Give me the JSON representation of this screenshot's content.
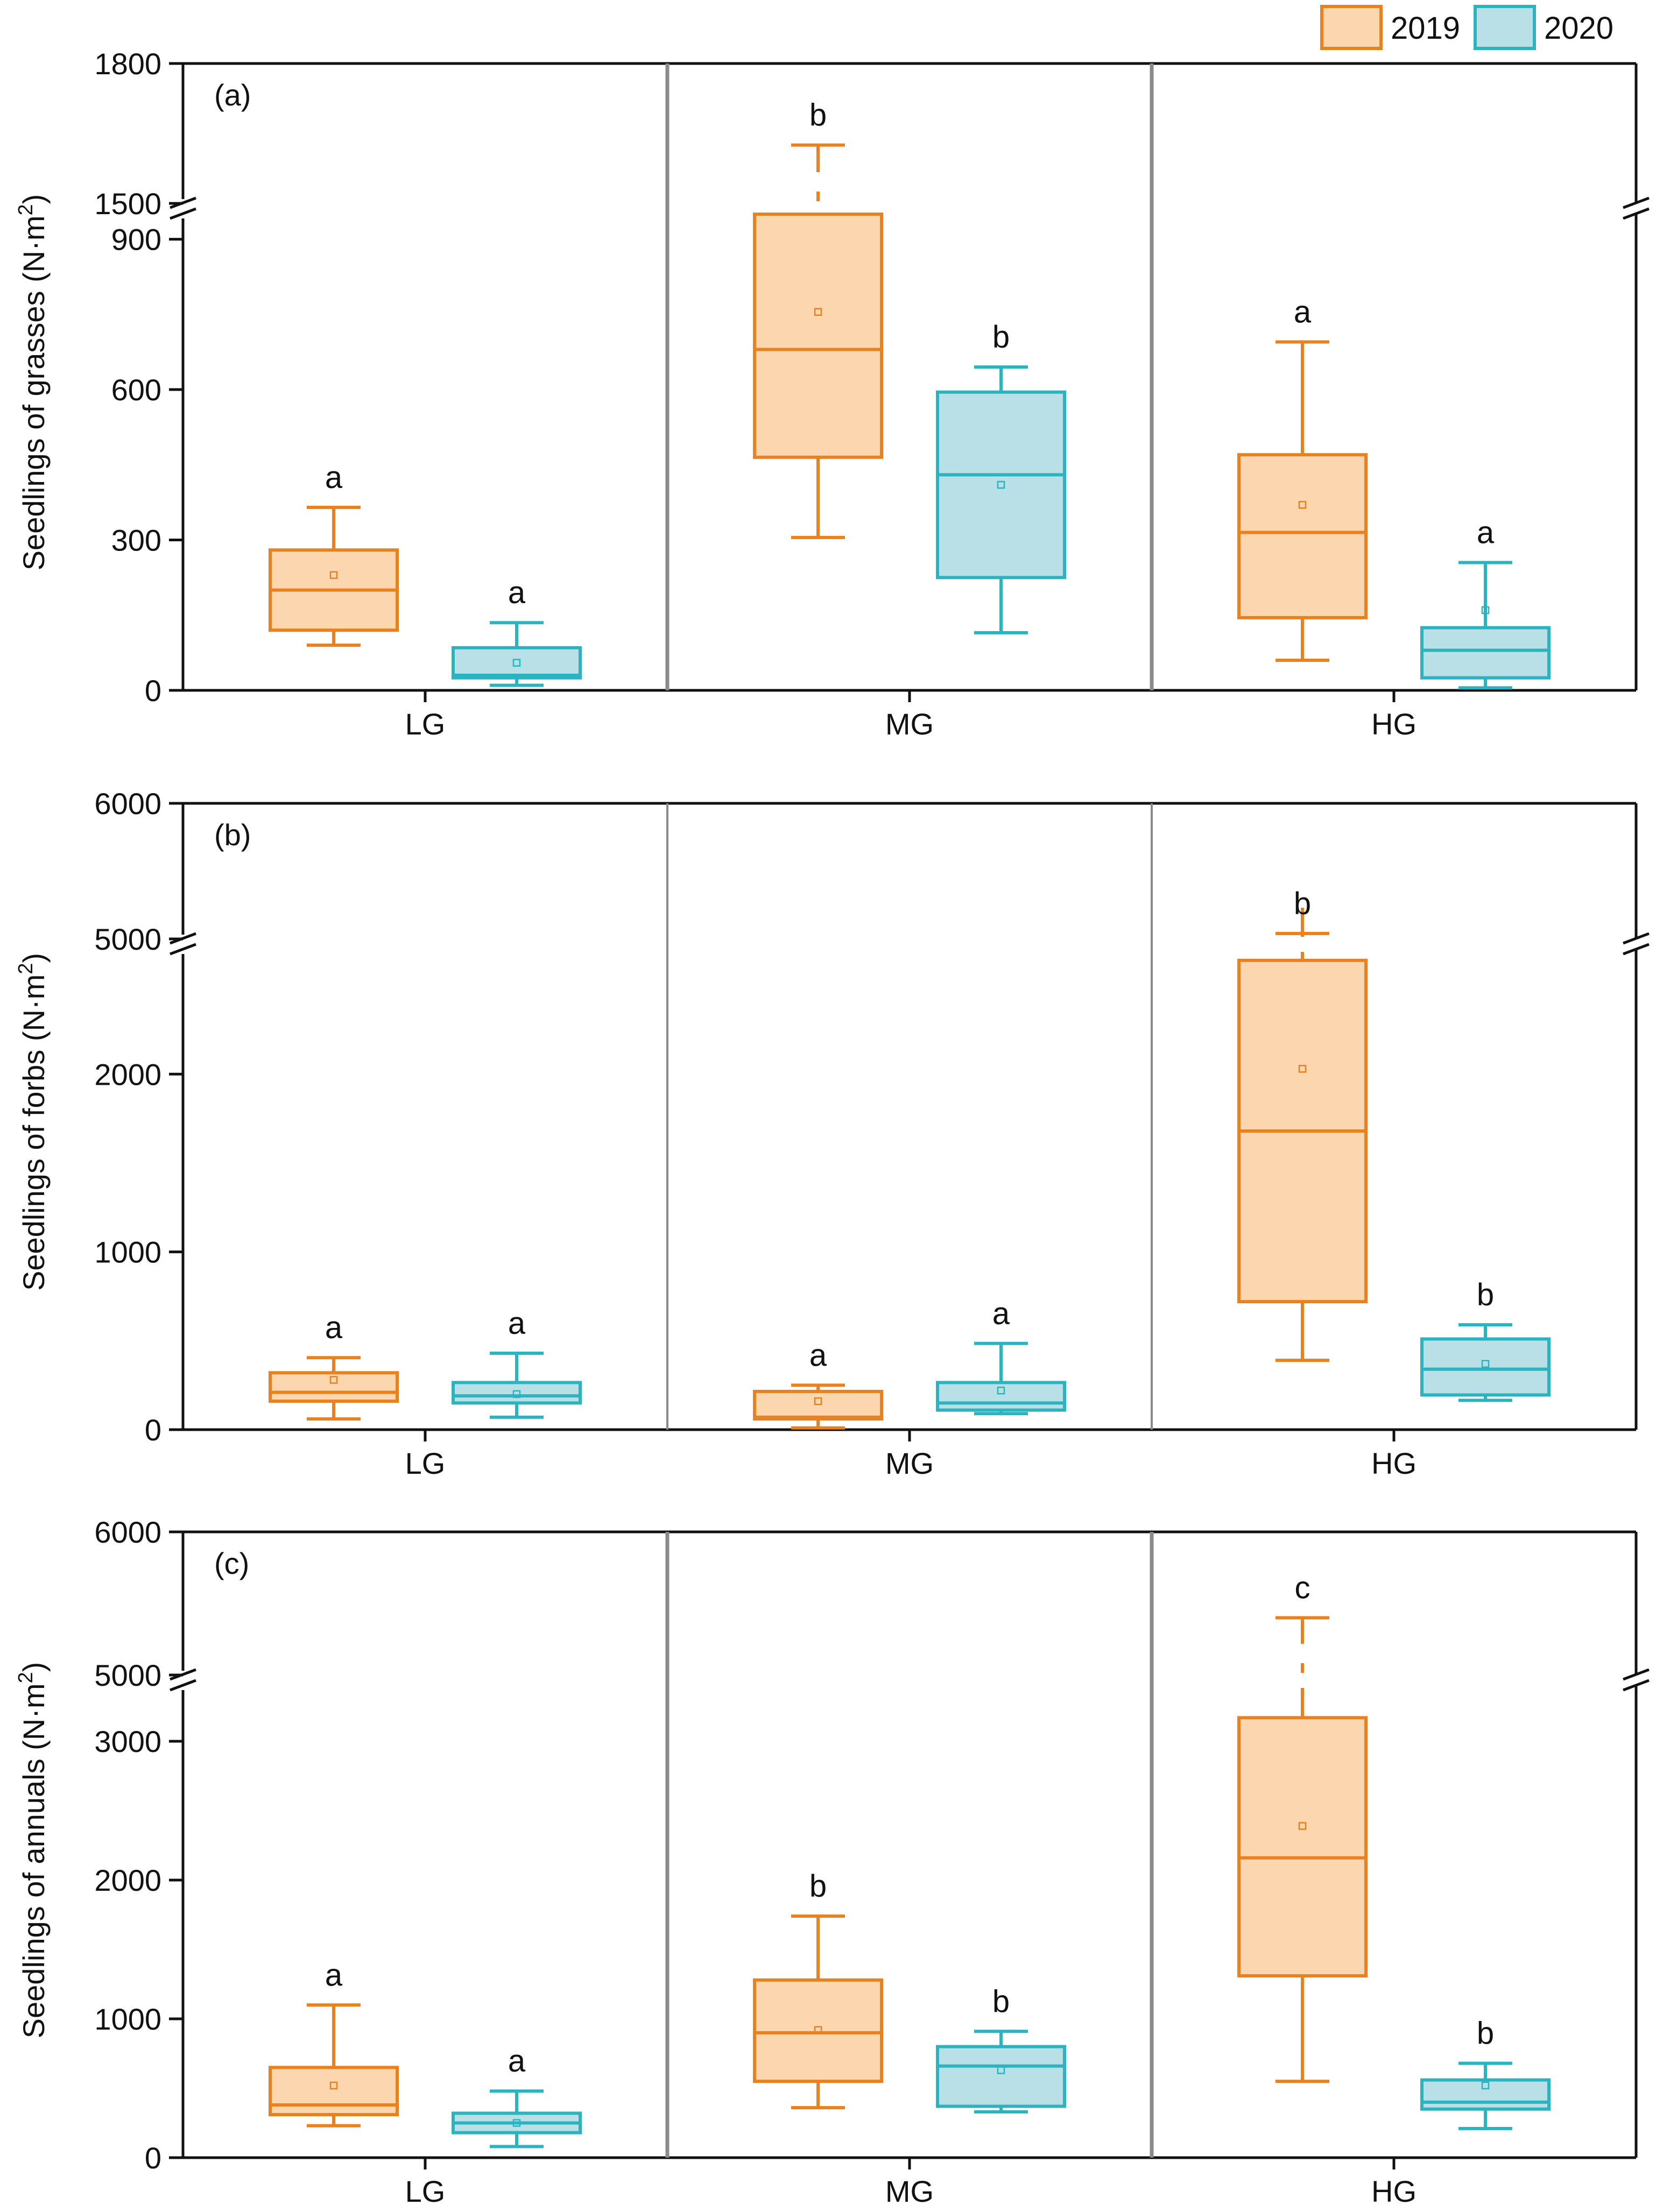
{
  "legend": [
    {
      "label": "2019",
      "color": "#E8811E",
      "fill": "#FCD6AE"
    },
    {
      "label": "2020",
      "color": "#2BB3C0",
      "fill": "#B9E0E6"
    }
  ],
  "chart_data": [
    {
      "type": "box",
      "panel": "(a)",
      "ylabel": "Seedlings of grasses (N·m",
      "ylabel_sup": "2",
      "ylabel_end": ")",
      "categories": [
        "LG",
        "MG",
        "HG"
      ],
      "axis_break": {
        "lower_range": [
          0,
          950
        ],
        "upper_range": [
          1500,
          1800
        ]
      },
      "yticks": [
        0,
        300,
        600,
        900,
        1500,
        1800
      ],
      "series": [
        {
          "name": "2019",
          "boxes": [
            {
              "category": "LG",
              "min": 90,
              "q1": 120,
              "median": 200,
              "q3": 280,
              "max": 365,
              "mean": 230,
              "letter": "a"
            },
            {
              "category": "MG",
              "min": 305,
              "q1": 465,
              "median": 680,
              "q3": 950,
              "max": 1625,
              "mean": 755,
              "letter": "b"
            },
            {
              "category": "HG",
              "min": 60,
              "q1": 145,
              "median": 315,
              "q3": 470,
              "max": 695,
              "mean": 370,
              "letter": "a"
            }
          ]
        },
        {
          "name": "2020",
          "boxes": [
            {
              "category": "LG",
              "min": 10,
              "q1": 25,
              "median": 30,
              "q3": 85,
              "max": 135,
              "mean": 55,
              "letter": "a"
            },
            {
              "category": "MG",
              "min": 115,
              "q1": 225,
              "median": 430,
              "q3": 595,
              "max": 645,
              "mean": 410,
              "letter": "b"
            },
            {
              "category": "HG",
              "min": 5,
              "q1": 25,
              "median": 80,
              "q3": 125,
              "max": 255,
              "mean": 160,
              "letter": "a"
            }
          ]
        }
      ]
    },
    {
      "type": "box",
      "panel": "(b)",
      "ylabel": "Seedlings of forbs (N·m",
      "ylabel_sup": "2",
      "ylabel_end": ")",
      "categories": [
        "LG",
        "MG",
        "HG"
      ],
      "axis_break": {
        "lower_range": [
          0,
          2700
        ],
        "upper_range": [
          5000,
          6000
        ]
      },
      "yticks": [
        0,
        1000,
        2000,
        5000,
        6000
      ],
      "series": [
        {
          "name": "2019",
          "boxes": [
            {
              "category": "LG",
              "min": 60,
              "q1": 160,
              "median": 210,
              "q3": 320,
              "max": 405,
              "mean": 280,
              "letter": "a"
            },
            {
              "category": "MG",
              "min": 10,
              "q1": 60,
              "median": 70,
              "q3": 215,
              "max": 250,
              "mean": 160,
              "letter": "a"
            },
            {
              "category": "HG",
              "min": 390,
              "q1": 720,
              "median": 1680,
              "q3": 2640,
              "max": 5040,
              "mean": 2030,
              "letter": "b"
            }
          ]
        },
        {
          "name": "2020",
          "boxes": [
            {
              "category": "LG",
              "min": 70,
              "q1": 150,
              "median": 190,
              "q3": 265,
              "max": 430,
              "mean": 200,
              "letter": "a"
            },
            {
              "category": "MG",
              "min": 90,
              "q1": 110,
              "median": 150,
              "q3": 265,
              "max": 485,
              "mean": 220,
              "letter": "a"
            },
            {
              "category": "HG",
              "min": 165,
              "q1": 195,
              "median": 340,
              "q3": 510,
              "max": 590,
              "mean": 370,
              "letter": "b"
            }
          ]
        }
      ]
    },
    {
      "type": "box",
      "panel": "(c)",
      "ylabel": "Seedlings of annuals (N·m",
      "ylabel_sup": "2",
      "ylabel_end": ")",
      "categories": [
        "LG",
        "MG",
        "HG"
      ],
      "axis_break": {
        "lower_range": [
          0,
          3400
        ],
        "upper_range": [
          5000,
          6000
        ]
      },
      "yticks": [
        0,
        1000,
        2000,
        3000,
        5000,
        6000
      ],
      "series": [
        {
          "name": "2019",
          "boxes": [
            {
              "category": "LG",
              "min": 230,
              "q1": 310,
              "median": 380,
              "q3": 650,
              "max": 1100,
              "mean": 520,
              "letter": "a"
            },
            {
              "category": "MG",
              "min": 360,
              "q1": 550,
              "median": 900,
              "q3": 1280,
              "max": 1740,
              "mean": 920,
              "letter": "b"
            },
            {
              "category": "HG",
              "min": 550,
              "q1": 1310,
              "median": 2160,
              "q3": 3170,
              "max": 5400,
              "mean": 2390,
              "letter": "c"
            }
          ]
        },
        {
          "name": "2020",
          "boxes": [
            {
              "category": "LG",
              "min": 80,
              "q1": 180,
              "median": 250,
              "q3": 320,
              "max": 480,
              "mean": 250,
              "letter": "a"
            },
            {
              "category": "MG",
              "min": 330,
              "q1": 370,
              "median": 660,
              "q3": 800,
              "max": 910,
              "mean": 630,
              "letter": "b"
            },
            {
              "category": "HG",
              "min": 210,
              "q1": 350,
              "median": 400,
              "q3": 560,
              "max": 680,
              "mean": 520,
              "letter": "b"
            }
          ]
        }
      ]
    }
  ]
}
